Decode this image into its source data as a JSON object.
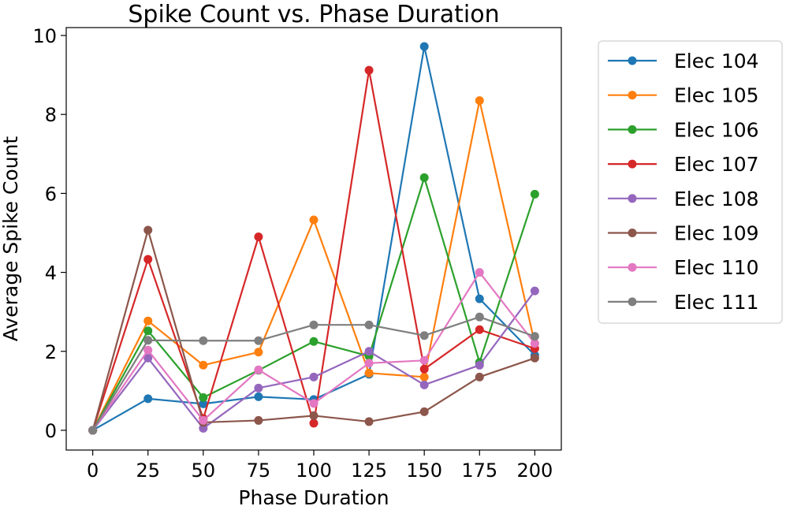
{
  "chart_data": {
    "type": "line",
    "title": "Spike Count vs. Phase Duration",
    "xlabel": "Phase Duration",
    "ylabel": "Average Spike Count",
    "x": [
      0,
      25,
      50,
      75,
      100,
      125,
      150,
      175,
      200
    ],
    "x_ticks": [
      "0",
      "25",
      "50",
      "75",
      "100",
      "125",
      "150",
      "175",
      "200"
    ],
    "y_ticks": [
      "0",
      "2",
      "4",
      "6",
      "8",
      "10"
    ],
    "xlim": [
      -12,
      212
    ],
    "ylim": [
      -0.5,
      10.2
    ],
    "grid": false,
    "legend_position": "right, outside plot",
    "series": [
      {
        "name": "Elec 104",
        "color": "#1f77b4",
        "values": [
          0,
          0.8,
          0.67,
          0.85,
          0.78,
          1.42,
          9.72,
          3.33,
          1.9
        ]
      },
      {
        "name": "Elec 105",
        "color": "#ff7f0e",
        "values": [
          0,
          2.77,
          1.65,
          1.98,
          5.33,
          1.45,
          1.35,
          8.35,
          2.2
        ]
      },
      {
        "name": "Elec 106",
        "color": "#2ca02c",
        "values": [
          0,
          2.52,
          0.83,
          1.52,
          2.25,
          1.88,
          6.4,
          1.72,
          5.98
        ]
      },
      {
        "name": "Elec 107",
        "color": "#d62728",
        "values": [
          0,
          4.33,
          0.3,
          4.9,
          0.18,
          9.12,
          1.55,
          2.55,
          2.07
        ]
      },
      {
        "name": "Elec 108",
        "color": "#9467bd",
        "values": [
          0,
          1.83,
          0.05,
          1.07,
          1.35,
          2.0,
          1.15,
          1.65,
          3.53
        ]
      },
      {
        "name": "Elec 109",
        "color": "#8c564b",
        "values": [
          0,
          5.07,
          0.2,
          0.25,
          0.37,
          0.22,
          0.47,
          1.35,
          1.83
        ]
      },
      {
        "name": "Elec 110",
        "color": "#e377c2",
        "values": [
          0,
          2.03,
          0.25,
          1.53,
          0.68,
          1.7,
          1.77,
          4.0,
          2.2
        ]
      },
      {
        "name": "Elec 111",
        "color": "#7f7f7f",
        "values": [
          0,
          2.28,
          2.27,
          2.27,
          2.67,
          2.67,
          2.4,
          2.87,
          2.38
        ]
      }
    ]
  }
}
